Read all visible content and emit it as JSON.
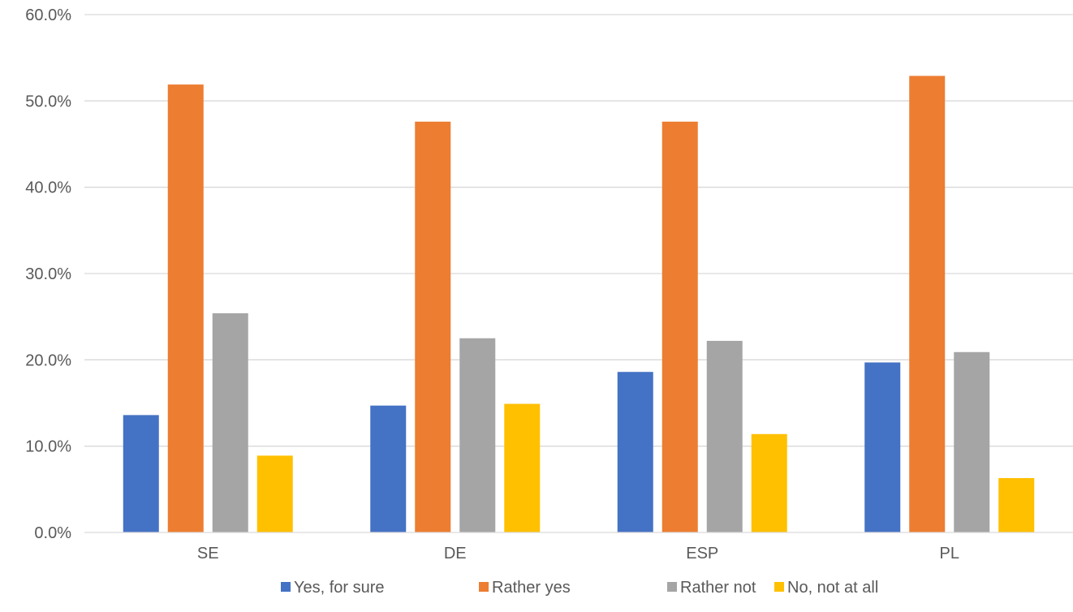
{
  "chart_data": {
    "type": "bar",
    "title": "",
    "xlabel": "",
    "ylabel": "",
    "categories": [
      "SE",
      "DE",
      "ESP",
      "PL"
    ],
    "ylim": [
      0,
      60
    ],
    "yticks": [
      0,
      10,
      20,
      30,
      40,
      50,
      60
    ],
    "ytick_labels": [
      "0.0%",
      "10.0%",
      "20.0%",
      "30.0%",
      "40.0%",
      "50.0%",
      "60.0%"
    ],
    "grid": true,
    "legend_position": "bottom",
    "series": [
      {
        "name": "Yes, for sure",
        "color": "#4472C4",
        "values": [
          13.6,
          14.7,
          18.6,
          19.7
        ]
      },
      {
        "name": "Rather yes",
        "color": "#ED7D31",
        "values": [
          51.9,
          47.6,
          47.6,
          52.9
        ]
      },
      {
        "name": "Rather not",
        "color": "#A5A5A5",
        "values": [
          25.4,
          22.5,
          22.2,
          20.9
        ]
      },
      {
        "name": "No, not at all",
        "color": "#FFC000",
        "values": [
          8.9,
          14.9,
          11.4,
          6.3
        ]
      }
    ]
  }
}
